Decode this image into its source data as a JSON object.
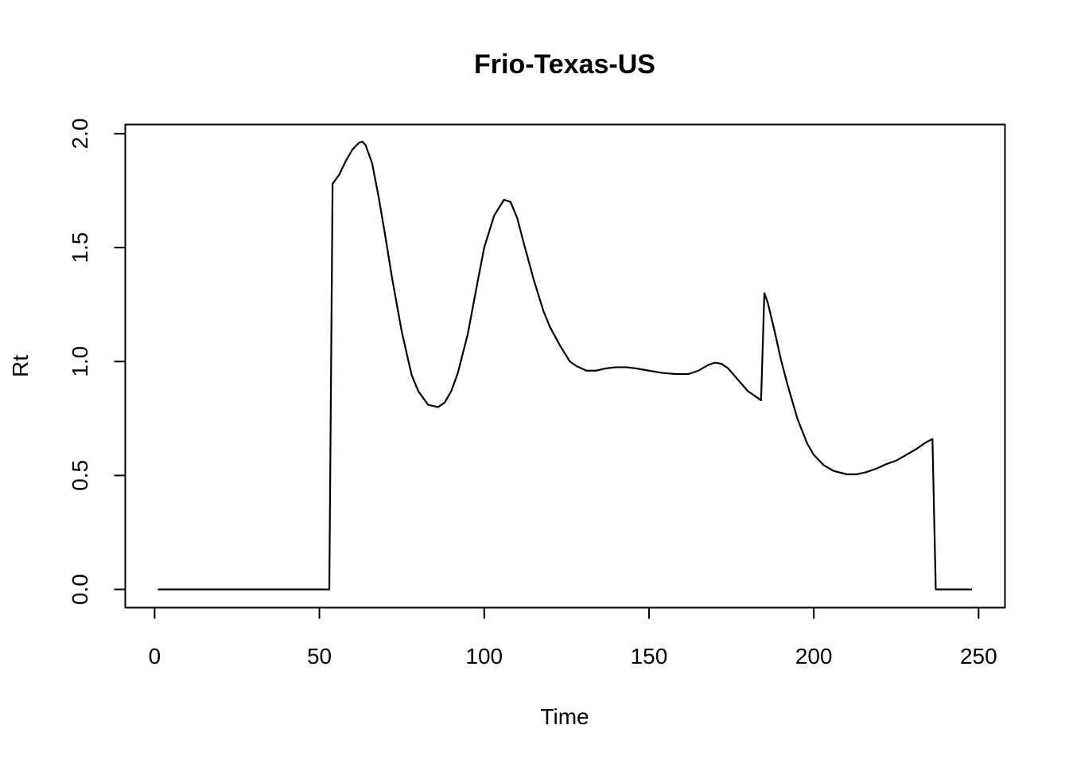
{
  "chart_data": {
    "type": "line",
    "title": "Frio-Texas-US",
    "xlabel": "Time",
    "ylabel": "Rt",
    "xlim": [
      -8.9,
      258
    ],
    "ylim": [
      -0.08,
      2.04
    ],
    "xticks": [
      0,
      50,
      100,
      150,
      200,
      250
    ],
    "yticks": [
      0.0,
      0.5,
      1.0,
      1.5,
      2.0
    ],
    "xtick_labels": [
      "0",
      "50",
      "100",
      "150",
      "200",
      "250"
    ],
    "ytick_labels": [
      "0.0",
      "0.5",
      "1.0",
      "1.5",
      "2.0"
    ],
    "grid": false,
    "series": [
      {
        "color": "#000000",
        "x": [
          1,
          53,
          54,
          56,
          58,
          60,
          62,
          63,
          64,
          66,
          68,
          70,
          72,
          75,
          78,
          80,
          83,
          86,
          88,
          90,
          92,
          95,
          98,
          100,
          103,
          106,
          108,
          110,
          112,
          115,
          118,
          120,
          123,
          126,
          128,
          131,
          134,
          137,
          140,
          143,
          146,
          150,
          154,
          158,
          162,
          165,
          168,
          170,
          172,
          174,
          177,
          180,
          184,
          185,
          186,
          188,
          190,
          192,
          195,
          198,
          200,
          203,
          206,
          210,
          213,
          216,
          219,
          222,
          225,
          228,
          231,
          234,
          236,
          237,
          240,
          245,
          248
        ],
        "y": [
          0.0,
          0.0,
          1.78,
          1.82,
          1.88,
          1.93,
          1.96,
          1.965,
          1.95,
          1.87,
          1.72,
          1.55,
          1.37,
          1.13,
          0.94,
          0.87,
          0.81,
          0.8,
          0.82,
          0.87,
          0.95,
          1.12,
          1.35,
          1.5,
          1.64,
          1.71,
          1.7,
          1.63,
          1.52,
          1.36,
          1.22,
          1.15,
          1.07,
          1.0,
          0.98,
          0.96,
          0.96,
          0.97,
          0.975,
          0.975,
          0.97,
          0.96,
          0.95,
          0.945,
          0.945,
          0.96,
          0.985,
          0.995,
          0.99,
          0.97,
          0.92,
          0.87,
          0.83,
          1.3,
          1.26,
          1.14,
          1.01,
          0.9,
          0.75,
          0.64,
          0.59,
          0.545,
          0.52,
          0.505,
          0.505,
          0.515,
          0.53,
          0.55,
          0.565,
          0.59,
          0.615,
          0.645,
          0.66,
          0.0,
          0.0,
          0.0,
          0.0
        ]
      }
    ]
  }
}
